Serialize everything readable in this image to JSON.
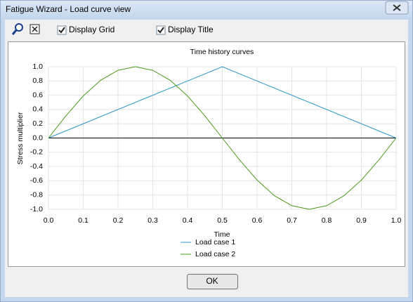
{
  "window": {
    "title": "Fatigue Wizard - Load curve view"
  },
  "toolbar": {
    "display_grid": {
      "label": "Display Grid",
      "checked": true
    },
    "display_title": {
      "label": "Display Title",
      "checked": true
    }
  },
  "chart_data": {
    "type": "line",
    "title": "Time history curves",
    "x_label": "Time",
    "y_label": "Stress multiplier",
    "xlim": [
      0,
      1
    ],
    "ylim": [
      -1,
      1
    ],
    "xticks": [
      {
        "value": 0,
        "label": "0.0"
      },
      0.1,
      0.2,
      0.3,
      0.4,
      0.5,
      0.6,
      0.7,
      0.8,
      0.9,
      {
        "value": 1,
        "label": "1.0"
      }
    ],
    "yticks": [
      {
        "value": 1,
        "label": "1.0"
      },
      0.8,
      0.6,
      0.4,
      0.2,
      {
        "value": 0,
        "label": "0.0"
      },
      -0.2,
      -0.4,
      -0.6,
      -0.8,
      {
        "value": -1,
        "label": "-1.0"
      }
    ],
    "grid": true,
    "series": [
      {
        "name": "Load case 1",
        "color": "#2a96c8",
        "x": [
          0,
          0.5,
          1
        ],
        "values": [
          0,
          1,
          0
        ]
      },
      {
        "name": "Load case 2",
        "color": "#4a9a1a",
        "x": [
          0,
          0.05,
          0.1,
          0.15,
          0.2,
          0.25,
          0.3,
          0.35,
          0.4,
          0.45,
          0.5,
          0.55,
          0.6,
          0.65,
          0.7,
          0.75,
          0.8,
          0.85,
          0.9,
          0.95,
          1
        ],
        "values": [
          0,
          0.31,
          0.59,
          0.81,
          0.95,
          1,
          0.95,
          0.81,
          0.59,
          0.31,
          0,
          -0.31,
          -0.59,
          -0.81,
          -0.95,
          -1,
          -0.95,
          -0.81,
          -0.59,
          -0.31,
          0
        ]
      }
    ]
  },
  "buttons": {
    "ok": "OK"
  }
}
